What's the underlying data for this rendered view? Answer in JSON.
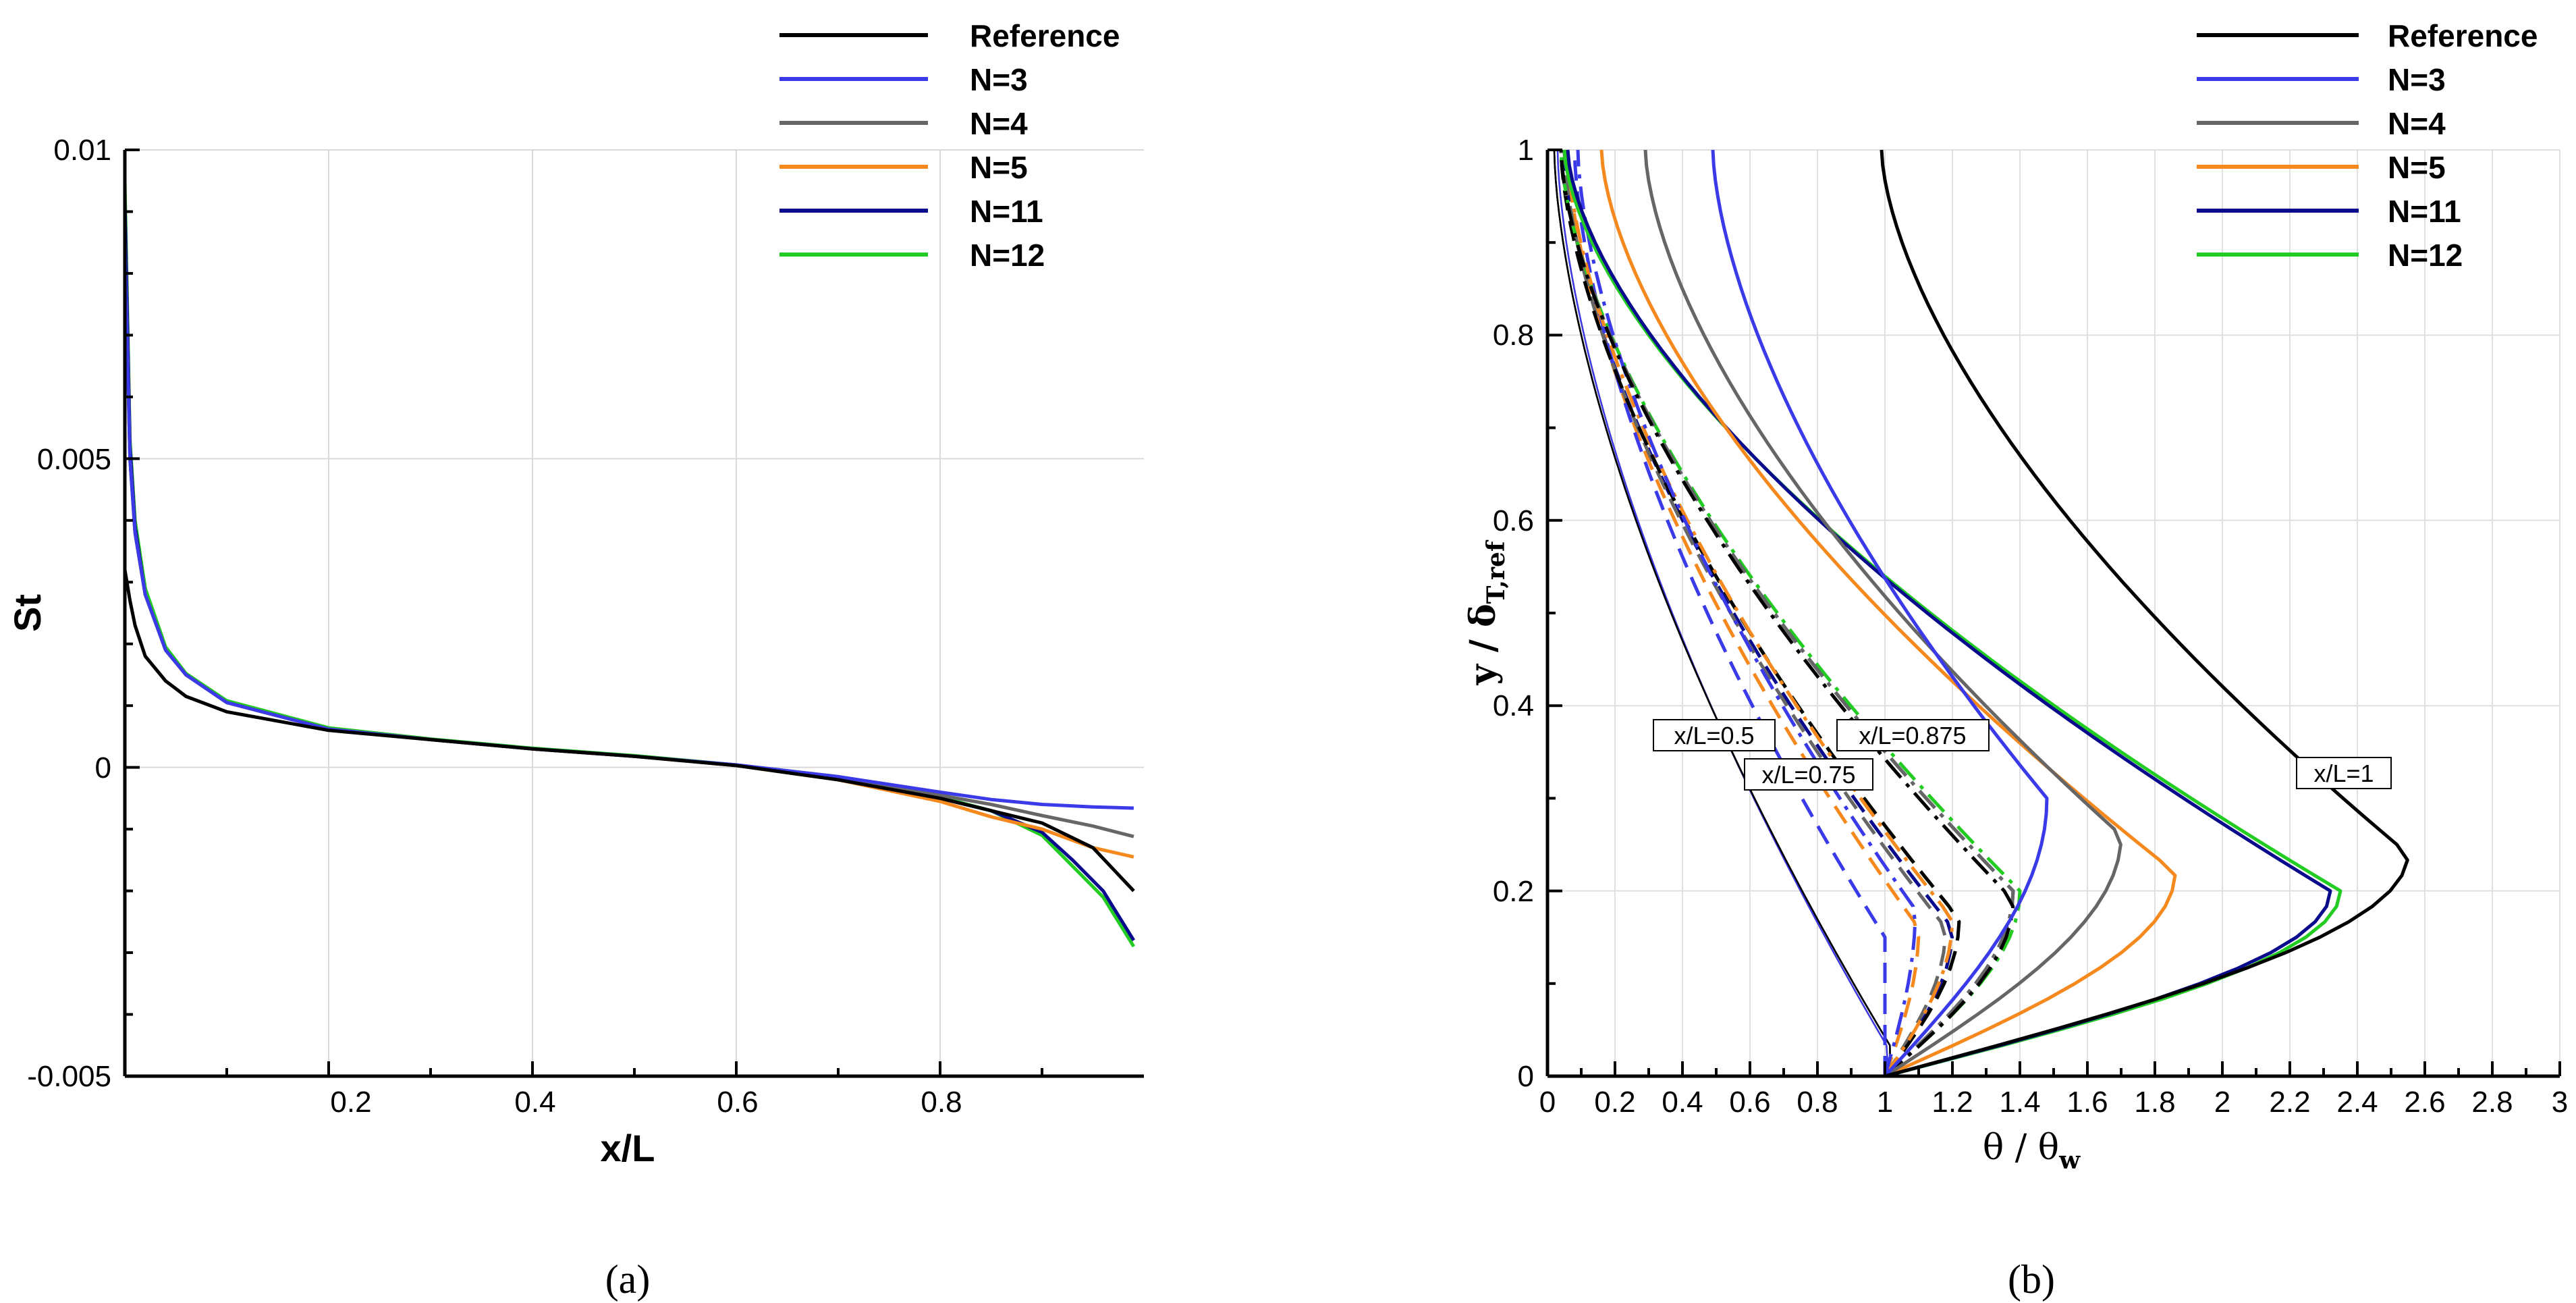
{
  "chart_data": [
    {
      "panel": "a",
      "type": "line",
      "caption": "(a)",
      "xlabel": "x/L",
      "ylabel": "St",
      "xlim": [
        0,
        1
      ],
      "ylim": [
        -0.005,
        0.01
      ],
      "xticks": [
        "0.2",
        "0.4",
        "0.6",
        "0.8"
      ],
      "yticks": [
        "-0.005",
        "0",
        "0.005",
        "0.01"
      ],
      "grid": true,
      "legend_position": "top-right",
      "series": [
        {
          "name": "Reference",
          "color": "#000000",
          "x": [
            0.0,
            0.005,
            0.01,
            0.02,
            0.04,
            0.06,
            0.1,
            0.2,
            0.3,
            0.4,
            0.5,
            0.6,
            0.7,
            0.8,
            0.9,
            0.95,
            0.99
          ],
          "y": [
            0.0032,
            0.0027,
            0.0023,
            0.0018,
            0.0014,
            0.00115,
            0.0009,
            0.0006,
            0.00045,
            0.0003,
            0.00018,
            3e-05,
            -0.0002,
            -0.0005,
            -0.0009,
            -0.0013,
            -0.002
          ]
        },
        {
          "name": "N=3",
          "color": "#3a3ae8",
          "x": [
            0.0,
            0.005,
            0.01,
            0.02,
            0.04,
            0.06,
            0.1,
            0.2,
            0.3,
            0.4,
            0.5,
            0.6,
            0.7,
            0.8,
            0.85,
            0.9,
            0.95,
            0.99
          ],
          "y": [
            0.0085,
            0.005,
            0.0038,
            0.0028,
            0.0019,
            0.0015,
            0.00105,
            0.00062,
            0.00045,
            0.0003,
            0.00018,
            4e-05,
            -0.00015,
            -0.0004,
            -0.00052,
            -0.0006,
            -0.00064,
            -0.00066
          ]
        },
        {
          "name": "N=4",
          "color": "#666666",
          "x": [
            0.0,
            0.005,
            0.01,
            0.02,
            0.04,
            0.06,
            0.1,
            0.2,
            0.3,
            0.4,
            0.5,
            0.6,
            0.7,
            0.8,
            0.85,
            0.9,
            0.95,
            0.99
          ],
          "y": [
            0.0085,
            0.005,
            0.0038,
            0.0028,
            0.0019,
            0.0015,
            0.00105,
            0.00062,
            0.00045,
            0.0003,
            0.00018,
            4e-05,
            -0.00015,
            -0.00045,
            -0.0006,
            -0.00078,
            -0.00095,
            -0.00112
          ]
        },
        {
          "name": "N=5",
          "color": "#f5891e",
          "x": [
            0.0,
            0.005,
            0.01,
            0.02,
            0.04,
            0.06,
            0.1,
            0.2,
            0.3,
            0.4,
            0.5,
            0.6,
            0.7,
            0.8,
            0.85,
            0.9,
            0.95,
            0.99
          ],
          "y": [
            0.0085,
            0.005,
            0.0038,
            0.0028,
            0.0019,
            0.0015,
            0.00105,
            0.00062,
            0.00045,
            0.0003,
            0.00018,
            3e-05,
            -0.0002,
            -0.00055,
            -0.0008,
            -0.001,
            -0.0013,
            -0.00145
          ]
        },
        {
          "name": "N=11",
          "color": "#0a0a8c",
          "x": [
            0.0,
            0.005,
            0.01,
            0.02,
            0.04,
            0.06,
            0.1,
            0.2,
            0.3,
            0.4,
            0.5,
            0.6,
            0.7,
            0.8,
            0.85,
            0.9,
            0.93,
            0.96,
            0.99
          ],
          "y": [
            0.0092,
            0.0052,
            0.0039,
            0.0028,
            0.0019,
            0.0015,
            0.00105,
            0.00062,
            0.00045,
            0.0003,
            0.00018,
            3e-05,
            -0.00018,
            -0.0005,
            -0.0007,
            -0.00105,
            -0.0015,
            -0.002,
            -0.0028
          ]
        },
        {
          "name": "N=12",
          "color": "#22cc22",
          "x": [
            0.0,
            0.005,
            0.01,
            0.02,
            0.04,
            0.06,
            0.1,
            0.2,
            0.3,
            0.4,
            0.5,
            0.6,
            0.7,
            0.8,
            0.85,
            0.9,
            0.93,
            0.96,
            0.99
          ],
          "y": [
            0.0095,
            0.0053,
            0.004,
            0.0029,
            0.00195,
            0.00152,
            0.00108,
            0.00064,
            0.00046,
            0.00031,
            0.00019,
            4e-05,
            -0.00016,
            -0.00048,
            -0.0007,
            -0.0011,
            -0.0016,
            -0.0021,
            -0.0029
          ]
        }
      ]
    },
    {
      "panel": "b",
      "type": "line",
      "caption": "(b)",
      "xlabel": "θ / θ",
      "xlabel_sub": "w",
      "ylabel": "y / δ",
      "ylabel_sub": "T,ref",
      "xlim": [
        0,
        3
      ],
      "ylim": [
        0,
        1
      ],
      "xticks": [
        "0",
        "0.2",
        "0.4",
        "0.6",
        "0.8",
        "1",
        "1.2",
        "1.4",
        "1.6",
        "1.8",
        "2",
        "2.2",
        "2.4",
        "2.6",
        "2.8",
        "3"
      ],
      "yticks": [
        "0",
        "0.2",
        "0.4",
        "0.6",
        "0.8",
        "1"
      ],
      "grid": true,
      "legend_position": "top-right",
      "legend": [
        {
          "name": "Reference",
          "color": "#000000"
        },
        {
          "name": "N=3",
          "color": "#3a3ae8"
        },
        {
          "name": "N=4",
          "color": "#666666"
        },
        {
          "name": "N=5",
          "color": "#f5891e"
        },
        {
          "name": "N=11",
          "color": "#0a0a8c"
        },
        {
          "name": "N=12",
          "color": "#22cc22"
        }
      ],
      "annotations": [
        "x/L=0.5",
        "x/L=0.75",
        "x/L=0.875",
        "x/L=1"
      ],
      "profile_groups": [
        {
          "station": "x/L=1",
          "dash": "solid",
          "series": [
            {
              "name": "Reference",
              "max": 2.55,
              "ypeak": 0.24,
              "top": 0.99
            },
            {
              "name": "N=3",
              "max": 1.48,
              "ypeak": 0.3,
              "top": 0.49
            },
            {
              "name": "N=4",
              "max": 1.7,
              "ypeak": 0.26,
              "top": 0.29
            },
            {
              "name": "N=5",
              "max": 1.86,
              "ypeak": 0.22,
              "top": 0.16
            },
            {
              "name": "N=11",
              "max": 2.32,
              "ypeak": 0.2,
              "top": 0.06
            },
            {
              "name": "N=12",
              "max": 2.35,
              "ypeak": 0.2,
              "top": 0.05
            }
          ]
        },
        {
          "station": "x/L=0.875",
          "dash": "dashdot",
          "series": [
            {
              "name": "Reference",
              "max": 1.38,
              "ypeak": 0.19,
              "top": 0.04
            },
            {
              "name": "N=3",
              "max": 1.09,
              "ypeak": 0.18,
              "top": 0.09
            },
            {
              "name": "N=4",
              "max": 1.38,
              "ypeak": 0.2,
              "top": 0.04
            },
            {
              "name": "N=5",
              "max": 1.2,
              "ypeak": 0.17,
              "top": 0.06
            },
            {
              "name": "N=11",
              "max": 1.38,
              "ypeak": 0.2,
              "top": 0.04
            },
            {
              "name": "N=12",
              "max": 1.4,
              "ypeak": 0.2,
              "top": 0.04
            }
          ]
        },
        {
          "station": "x/L=0.75",
          "dash": "dashed",
          "series": [
            {
              "name": "Reference",
              "max": 1.22,
              "ypeak": 0.17,
              "top": 0.04
            },
            {
              "name": "N=3",
              "max": 1.0,
              "ypeak": 0.15,
              "top": 0.08
            },
            {
              "name": "N=4",
              "max": 1.18,
              "ypeak": 0.16,
              "top": 0.05
            },
            {
              "name": "N=5",
              "max": 1.1,
              "ypeak": 0.16,
              "top": 0.06
            },
            {
              "name": "N=11",
              "max": 1.2,
              "ypeak": 0.16,
              "top": 0.05
            },
            {
              "name": "N=12",
              "max": 1.22,
              "ypeak": 0.17,
              "top": 0.04
            }
          ]
        },
        {
          "station": "x/L=0.5",
          "dash": "thin",
          "series": [
            {
              "name": "Reference",
              "max": 1.02,
              "ypeak": 0.03,
              "top": 0.02
            },
            {
              "name": "N=3",
              "max": 1.01,
              "ypeak": 0.03,
              "top": 0.03
            },
            {
              "name": "N=4",
              "max": 1.02,
              "ypeak": 0.03,
              "top": 0.02
            },
            {
              "name": "N=5",
              "max": 1.01,
              "ypeak": 0.03,
              "top": 0.03
            },
            {
              "name": "N=11",
              "max": 1.02,
              "ypeak": 0.03,
              "top": 0.02
            },
            {
              "name": "N=12",
              "max": 1.02,
              "ypeak": 0.03,
              "top": 0.02
            }
          ]
        }
      ]
    }
  ]
}
